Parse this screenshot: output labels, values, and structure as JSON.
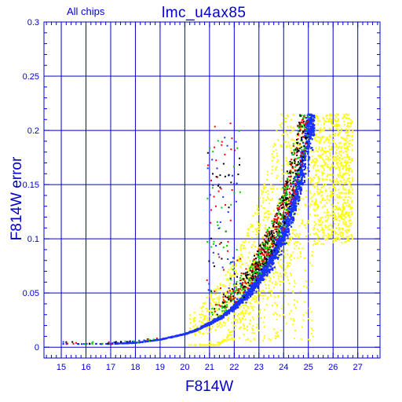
{
  "chart_data": {
    "type": "scatter",
    "title": "lmc_u4ax85",
    "subtitle": "All chips",
    "xlabel": "F814W",
    "ylabel": "F814W error",
    "xlim": [
      14.3,
      27.9
    ],
    "ylim": [
      -0.01,
      0.3
    ],
    "x_ticks": [
      "15",
      "16",
      "17",
      "18",
      "19",
      "20",
      "21",
      "22",
      "23",
      "24",
      "25",
      "26",
      "27"
    ],
    "y_ticks": [
      "0",
      "0.05",
      "0.1",
      "0.15",
      "0.2",
      "0.25",
      "0.3"
    ],
    "grid": true,
    "colors": {
      "axis": "#0000cc",
      "main_sequence": "#1a33ff",
      "scatter_yellow": "#ffff00",
      "outliers": [
        "#000000",
        "#ff0000",
        "#00cc00",
        "#1a33ff"
      ]
    },
    "series": [
      {
        "color": "#1a33ff",
        "description_points": [
          [
            14.9,
            0.003
          ],
          [
            15.5,
            0.003
          ],
          [
            16,
            0.003
          ],
          [
            17,
            0.003
          ],
          [
            18,
            0.004
          ],
          [
            19,
            0.007
          ],
          [
            20,
            0.012
          ],
          [
            20.5,
            0.016
          ],
          [
            21,
            0.022
          ],
          [
            21.5,
            0.028
          ],
          [
            22,
            0.037
          ],
          [
            22.5,
            0.048
          ],
          [
            23,
            0.062
          ],
          [
            23.5,
            0.08
          ],
          [
            24,
            0.105
          ],
          [
            24.3,
            0.125
          ],
          [
            24.6,
            0.15
          ],
          [
            24.8,
            0.17
          ],
          [
            25,
            0.19
          ],
          [
            25.2,
            0.215
          ]
        ]
      },
      {
        "color": "#ffff00",
        "x_range": [
          20,
          27
        ],
        "y_range": [
          0,
          0.215
        ]
      },
      {
        "color": "#000000",
        "x_range": [
          20.9,
          25
        ],
        "y_range": [
          0.01,
          0.215
        ]
      }
    ]
  }
}
